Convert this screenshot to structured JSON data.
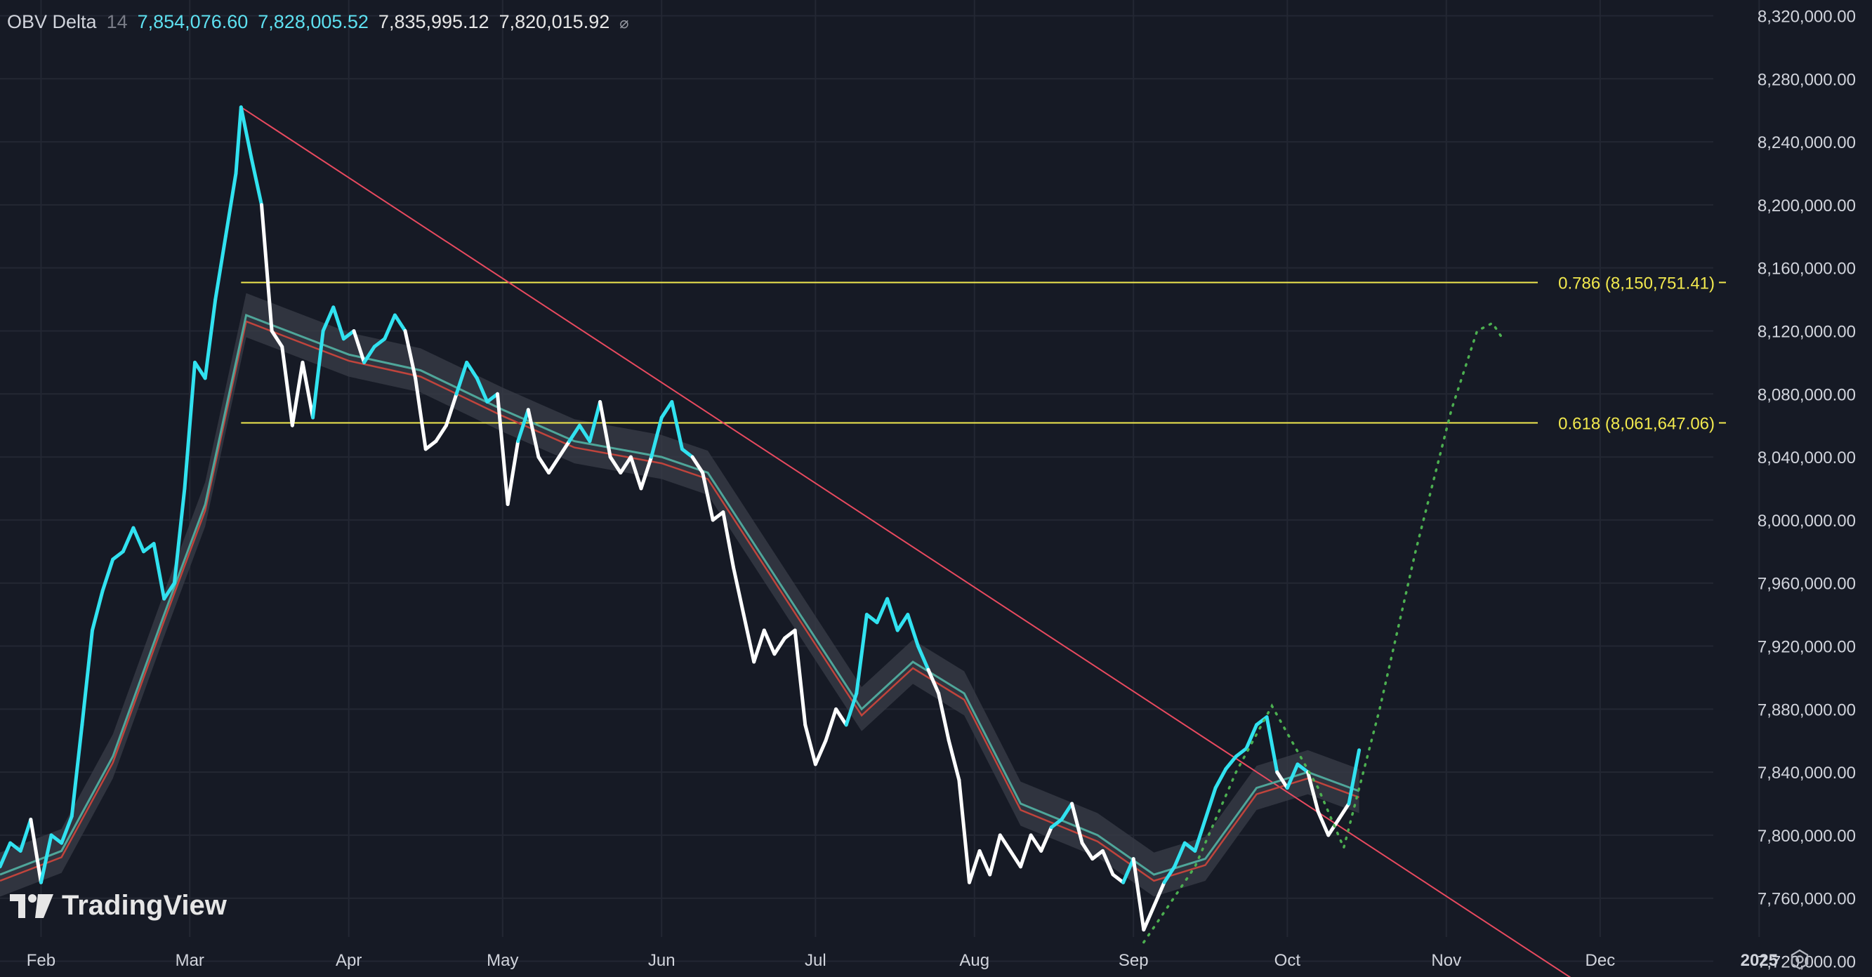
{
  "legend": {
    "indicator": "OBV Delta",
    "period": "14",
    "value1": "7,854,076.60",
    "value2": "7,828,005.52",
    "value3": "7,835,995.12",
    "value4": "7,820,015.92",
    "visibility_icon": "eye-crossed-icon"
  },
  "branding": {
    "logo_text": "TradingView",
    "logo_icon": "tradingview-logo-icon"
  },
  "settings_icon": "gear-icon",
  "colors": {
    "background": "#161a25",
    "grid": "#232733",
    "cyan": "#31e2f0",
    "white": "#ffffff",
    "trendline": "#e84a5f",
    "fib": "#f2e94e",
    "projection": "#4caf50",
    "ma_fast": "#4fa69a",
    "ma_slow": "#c0443c",
    "band": "#3a3d48"
  },
  "chart_data": {
    "type": "line",
    "x_axis_type": "date",
    "x_ticks": [
      {
        "label": "Feb",
        "date": "2024-02-01"
      },
      {
        "label": "Mar",
        "date": "2024-03-01"
      },
      {
        "label": "Apr",
        "date": "2024-04-01"
      },
      {
        "label": "May",
        "date": "2024-05-01"
      },
      {
        "label": "Jun",
        "date": "2024-06-01"
      },
      {
        "label": "Jul",
        "date": "2024-07-01"
      },
      {
        "label": "Aug",
        "date": "2024-08-01"
      },
      {
        "label": "Sep",
        "date": "2024-09-01"
      },
      {
        "label": "Oct",
        "date": "2024-10-01"
      },
      {
        "label": "Nov",
        "date": "2024-11-01"
      },
      {
        "label": "Dec",
        "date": "2024-12-01"
      },
      {
        "label": "2025",
        "date": "2025-01-01",
        "bold": true
      }
    ],
    "y_ticks": [
      {
        "value": 8320000,
        "label": "8,320,000.00"
      },
      {
        "value": 8280000,
        "label": "8,280,000.00"
      },
      {
        "value": 8240000,
        "label": "8,240,000.00"
      },
      {
        "value": 8200000,
        "label": "8,200,000.00"
      },
      {
        "value": 8160000,
        "label": "8,160,000.00"
      },
      {
        "value": 8120000,
        "label": "8,120,000.00"
      },
      {
        "value": 8080000,
        "label": "8,080,000.00"
      },
      {
        "value": 8040000,
        "label": "8,040,000.00"
      },
      {
        "value": 8000000,
        "label": "8,000,000.00"
      },
      {
        "value": 7960000,
        "label": "7,960,000.00"
      },
      {
        "value": 7920000,
        "label": "7,920,000.00"
      },
      {
        "value": 7880000,
        "label": "7,880,000.00"
      },
      {
        "value": 7840000,
        "label": "7,840,000.00"
      },
      {
        "value": 7800000,
        "label": "7,800,000.00"
      },
      {
        "value": 7760000,
        "label": "7,760,000.00"
      },
      {
        "value": 7720000,
        "label": "7,720,000.00"
      }
    ],
    "xlim": [
      "2024-01-24",
      "2025-01-23"
    ],
    "ylim": [
      7710000,
      8330000
    ],
    "grid": true,
    "obv_delta": [
      [
        "2024-01-24",
        7780000
      ],
      [
        "2024-01-26",
        7795000
      ],
      [
        "2024-01-28",
        7790000
      ],
      [
        "2024-01-30",
        7810000
      ],
      [
        "2024-02-01",
        7770000
      ],
      [
        "2024-02-03",
        7800000
      ],
      [
        "2024-02-05",
        7795000
      ],
      [
        "2024-02-07",
        7812000
      ],
      [
        "2024-02-09",
        7870000
      ],
      [
        "2024-02-11",
        7930000
      ],
      [
        "2024-02-13",
        7955000
      ],
      [
        "2024-02-15",
        7975000
      ],
      [
        "2024-02-17",
        7980000
      ],
      [
        "2024-02-19",
        7995000
      ],
      [
        "2024-02-21",
        7980000
      ],
      [
        "2024-02-23",
        7985000
      ],
      [
        "2024-02-25",
        7950000
      ],
      [
        "2024-02-27",
        7960000
      ],
      [
        "2024-02-29",
        8020000
      ],
      [
        "2024-03-02",
        8100000
      ],
      [
        "2024-03-04",
        8090000
      ],
      [
        "2024-03-06",
        8140000
      ],
      [
        "2024-03-08",
        8180000
      ],
      [
        "2024-03-10",
        8220000
      ],
      [
        "2024-03-11",
        8262000
      ],
      [
        "2024-03-13",
        8230000
      ],
      [
        "2024-03-15",
        8200000
      ],
      [
        "2024-03-17",
        8120000
      ],
      [
        "2024-03-19",
        8110000
      ],
      [
        "2024-03-21",
        8060000
      ],
      [
        "2024-03-23",
        8100000
      ],
      [
        "2024-03-25",
        8065000
      ],
      [
        "2024-03-27",
        8120000
      ],
      [
        "2024-03-29",
        8135000
      ],
      [
        "2024-03-31",
        8115000
      ],
      [
        "2024-04-02",
        8120000
      ],
      [
        "2024-04-04",
        8100000
      ],
      [
        "2024-04-06",
        8110000
      ],
      [
        "2024-04-08",
        8115000
      ],
      [
        "2024-04-10",
        8130000
      ],
      [
        "2024-04-12",
        8120000
      ],
      [
        "2024-04-14",
        8090000
      ],
      [
        "2024-04-16",
        8045000
      ],
      [
        "2024-04-18",
        8050000
      ],
      [
        "2024-04-20",
        8060000
      ],
      [
        "2024-04-22",
        8080000
      ],
      [
        "2024-04-24",
        8100000
      ],
      [
        "2024-04-26",
        8090000
      ],
      [
        "2024-04-28",
        8075000
      ],
      [
        "2024-04-30",
        8080000
      ],
      [
        "2024-05-02",
        8010000
      ],
      [
        "2024-05-04",
        8050000
      ],
      [
        "2024-05-06",
        8070000
      ],
      [
        "2024-05-08",
        8040000
      ],
      [
        "2024-05-10",
        8030000
      ],
      [
        "2024-05-12",
        8040000
      ],
      [
        "2024-05-14",
        8050000
      ],
      [
        "2024-05-16",
        8060000
      ],
      [
        "2024-05-18",
        8050000
      ],
      [
        "2024-05-20",
        8075000
      ],
      [
        "2024-05-22",
        8040000
      ],
      [
        "2024-05-24",
        8030000
      ],
      [
        "2024-05-26",
        8040000
      ],
      [
        "2024-05-28",
        8020000
      ],
      [
        "2024-05-30",
        8040000
      ],
      [
        "2024-06-01",
        8065000
      ],
      [
        "2024-06-03",
        8075000
      ],
      [
        "2024-06-05",
        8045000
      ],
      [
        "2024-06-07",
        8040000
      ],
      [
        "2024-06-09",
        8030000
      ],
      [
        "2024-06-11",
        8000000
      ],
      [
        "2024-06-13",
        8005000
      ],
      [
        "2024-06-15",
        7970000
      ],
      [
        "2024-06-17",
        7940000
      ],
      [
        "2024-06-19",
        7910000
      ],
      [
        "2024-06-21",
        7930000
      ],
      [
        "2024-06-23",
        7915000
      ],
      [
        "2024-06-25",
        7925000
      ],
      [
        "2024-06-27",
        7930000
      ],
      [
        "2024-06-29",
        7870000
      ],
      [
        "2024-07-01",
        7845000
      ],
      [
        "2024-07-03",
        7860000
      ],
      [
        "2024-07-05",
        7880000
      ],
      [
        "2024-07-07",
        7870000
      ],
      [
        "2024-07-09",
        7890000
      ],
      [
        "2024-07-11",
        7940000
      ],
      [
        "2024-07-13",
        7935000
      ],
      [
        "2024-07-15",
        7950000
      ],
      [
        "2024-07-17",
        7930000
      ],
      [
        "2024-07-19",
        7940000
      ],
      [
        "2024-07-21",
        7920000
      ],
      [
        "2024-07-23",
        7905000
      ],
      [
        "2024-07-25",
        7890000
      ],
      [
        "2024-07-27",
        7860000
      ],
      [
        "2024-07-29",
        7835000
      ],
      [
        "2024-07-31",
        7770000
      ],
      [
        "2024-08-02",
        7790000
      ],
      [
        "2024-08-04",
        7775000
      ],
      [
        "2024-08-06",
        7800000
      ],
      [
        "2024-08-08",
        7790000
      ],
      [
        "2024-08-10",
        7780000
      ],
      [
        "2024-08-12",
        7800000
      ],
      [
        "2024-08-14",
        7790000
      ],
      [
        "2024-08-16",
        7805000
      ],
      [
        "2024-08-18",
        7810000
      ],
      [
        "2024-08-20",
        7820000
      ],
      [
        "2024-08-22",
        7795000
      ],
      [
        "2024-08-24",
        7785000
      ],
      [
        "2024-08-26",
        7790000
      ],
      [
        "2024-08-28",
        7775000
      ],
      [
        "2024-08-30",
        7770000
      ],
      [
        "2024-09-01",
        7785000
      ],
      [
        "2024-09-03",
        7740000
      ],
      [
        "2024-09-05",
        7755000
      ],
      [
        "2024-09-07",
        7770000
      ],
      [
        "2024-09-09",
        7780000
      ],
      [
        "2024-09-11",
        7795000
      ],
      [
        "2024-09-13",
        7790000
      ],
      [
        "2024-09-15",
        7810000
      ],
      [
        "2024-09-17",
        7830000
      ],
      [
        "2024-09-19",
        7842000
      ],
      [
        "2024-09-21",
        7850000
      ],
      [
        "2024-09-23",
        7855000
      ],
      [
        "2024-09-25",
        7870000
      ],
      [
        "2024-09-27",
        7875000
      ],
      [
        "2024-09-29",
        7840000
      ],
      [
        "2024-10-01",
        7830000
      ],
      [
        "2024-10-03",
        7845000
      ],
      [
        "2024-10-05",
        7840000
      ],
      [
        "2024-10-07",
        7815000
      ],
      [
        "2024-10-09",
        7800000
      ],
      [
        "2024-10-11",
        7810000
      ],
      [
        "2024-10-13",
        7820000
      ],
      [
        "2024-10-15",
        7854000
      ]
    ],
    "moving_average": [
      [
        "2024-01-24",
        7775000
      ],
      [
        "2024-02-05",
        7790000
      ],
      [
        "2024-02-15",
        7850000
      ],
      [
        "2024-02-25",
        7940000
      ],
      [
        "2024-03-04",
        8010000
      ],
      [
        "2024-03-12",
        8130000
      ],
      [
        "2024-03-20",
        8120000
      ],
      [
        "2024-04-01",
        8105000
      ],
      [
        "2024-04-15",
        8095000
      ],
      [
        "2024-05-01",
        8070000
      ],
      [
        "2024-05-15",
        8050000
      ],
      [
        "2024-06-01",
        8040000
      ],
      [
        "2024-06-10",
        8030000
      ],
      [
        "2024-06-20",
        7980000
      ],
      [
        "2024-06-30",
        7930000
      ],
      [
        "2024-07-10",
        7880000
      ],
      [
        "2024-07-20",
        7910000
      ],
      [
        "2024-07-30",
        7890000
      ],
      [
        "2024-08-10",
        7820000
      ],
      [
        "2024-08-25",
        7800000
      ],
      [
        "2024-09-05",
        7775000
      ],
      [
        "2024-09-15",
        7785000
      ],
      [
        "2024-09-25",
        7830000
      ],
      [
        "2024-10-05",
        7840000
      ],
      [
        "2024-10-15",
        7828000
      ]
    ],
    "trendline": [
      [
        "2024-03-11",
        8262000
      ],
      [
        "2024-11-26",
        7708000
      ]
    ],
    "fib_levels": [
      {
        "ratio": "0.786",
        "value": 8150751.41,
        "label": "0.786 (8,150,751.41)",
        "from": "2024-03-11"
      },
      {
        "ratio": "0.618",
        "value": 8061647.06,
        "label": "0.618 (8,061,647.06)",
        "from": "2024-03-11"
      }
    ],
    "projection_path": [
      [
        "2024-09-03",
        7732000
      ],
      [
        "2024-09-13",
        7780000
      ],
      [
        "2024-09-21",
        7840000
      ],
      [
        "2024-09-28",
        7882000
      ],
      [
        "2024-10-07",
        7830000
      ],
      [
        "2024-10-12",
        7792000
      ],
      [
        "2024-10-19",
        7880000
      ],
      [
        "2024-10-26",
        7980000
      ],
      [
        "2024-11-02",
        8070000
      ],
      [
        "2024-11-07",
        8120000
      ],
      [
        "2024-11-10",
        8125000
      ],
      [
        "2024-11-12",
        8115000
      ]
    ]
  }
}
